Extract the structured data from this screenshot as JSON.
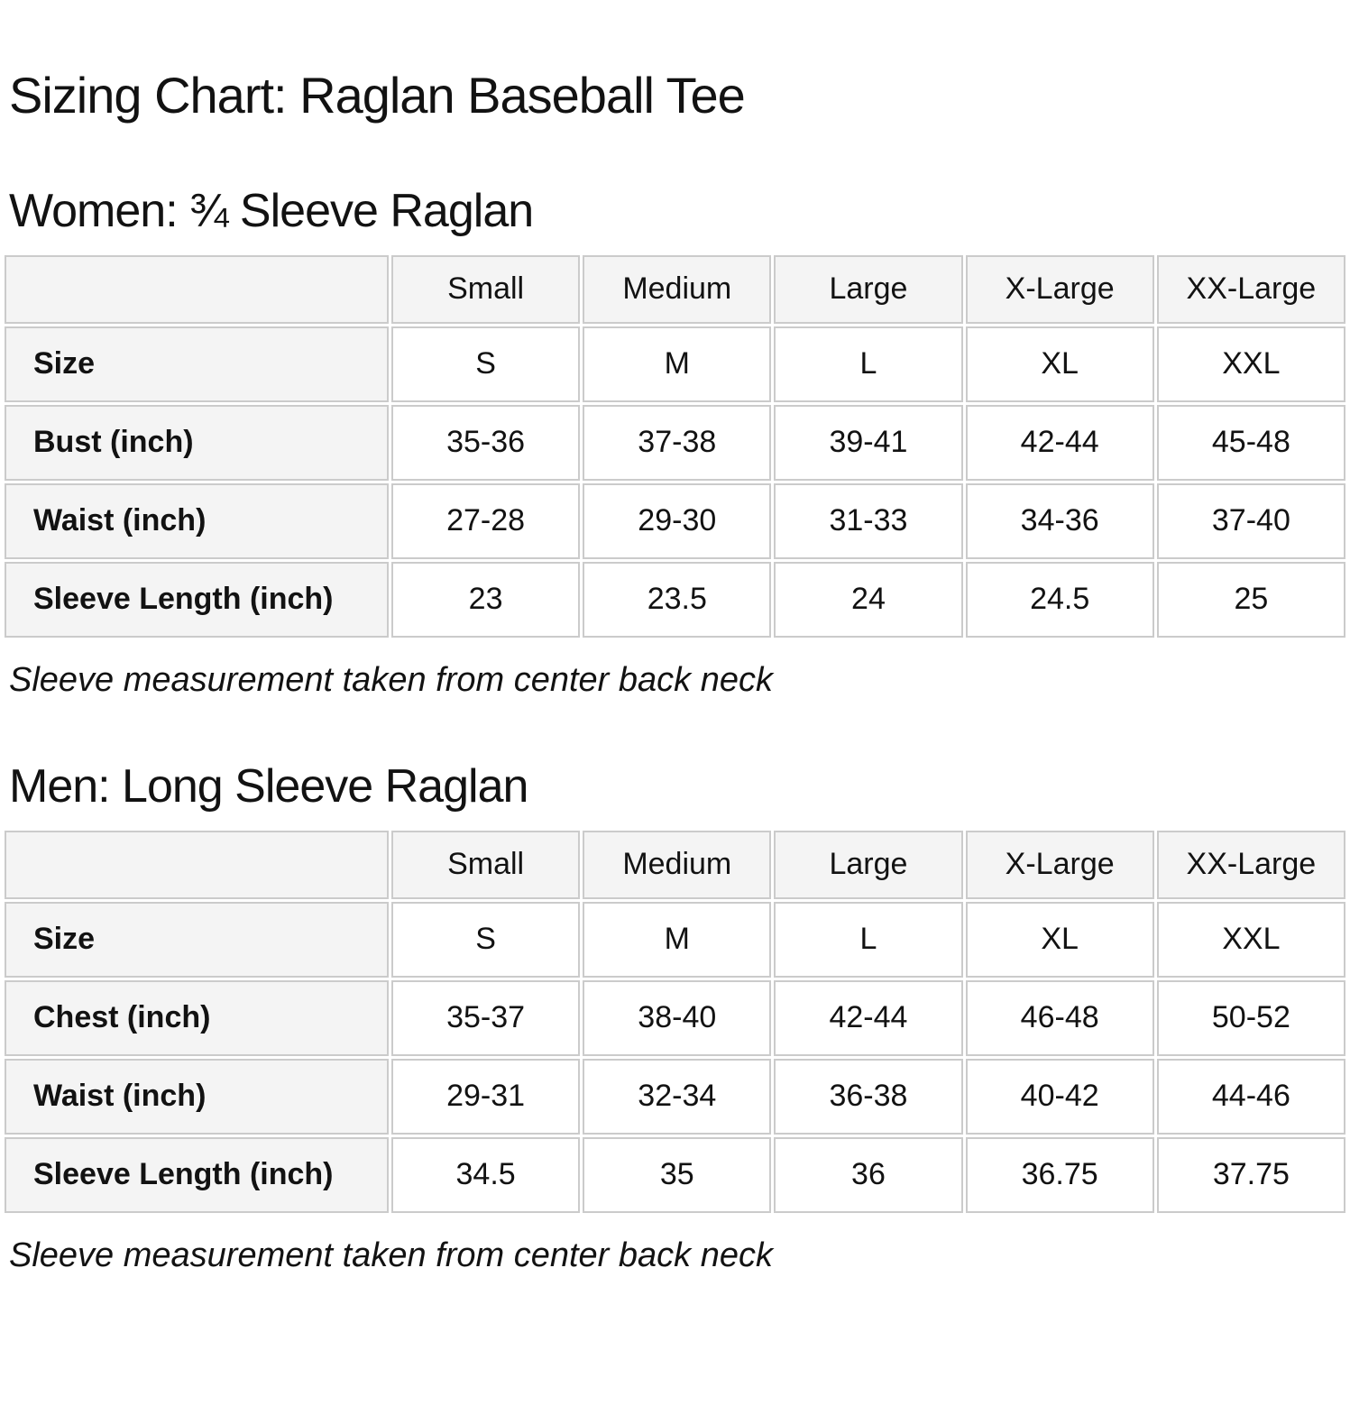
{
  "page": {
    "title": "Sizing Chart: Raglan Baseball Tee"
  },
  "colors": {
    "cell_bg": "#f4f4f4",
    "border": "#cbcbcb",
    "text": "#121212"
  },
  "women": {
    "heading": "Women: ¾ Sleeve Raglan",
    "note": "Sleeve measurement taken from center back neck",
    "table": {
      "column_headers": [
        "",
        "Small",
        "Medium",
        "Large",
        "X-Large",
        "XX-Large"
      ],
      "rows": [
        {
          "label": "Size",
          "values": [
            "S",
            "M",
            "L",
            "XL",
            "XXL"
          ]
        },
        {
          "label": "Bust (inch)",
          "values": [
            "35-36",
            "37-38",
            "39-41",
            "42-44",
            "45-48"
          ]
        },
        {
          "label": "Waist (inch)",
          "values": [
            "27-28",
            "29-30",
            "31-33",
            "34-36",
            "37-40"
          ]
        },
        {
          "label": "Sleeve Length (inch)",
          "values": [
            "23",
            "23.5",
            "24",
            "24.5",
            "25"
          ]
        }
      ]
    }
  },
  "men": {
    "heading": "Men: Long Sleeve Raglan",
    "note": "Sleeve measurement taken from center back neck",
    "table": {
      "column_headers": [
        "",
        "Small",
        "Medium",
        "Large",
        "X-Large",
        "XX-Large"
      ],
      "rows": [
        {
          "label": "Size",
          "values": [
            "S",
            "M",
            "L",
            "XL",
            "XXL"
          ]
        },
        {
          "label": "Chest (inch)",
          "values": [
            "35-37",
            "38-40",
            "42-44",
            "46-48",
            "50-52"
          ]
        },
        {
          "label": "Waist (inch)",
          "values": [
            "29-31",
            "32-34",
            "36-38",
            "40-42",
            "44-46"
          ]
        },
        {
          "label": "Sleeve Length (inch)",
          "values": [
            "34.5",
            "35",
            "36",
            "36.75",
            "37.75"
          ]
        }
      ]
    }
  }
}
